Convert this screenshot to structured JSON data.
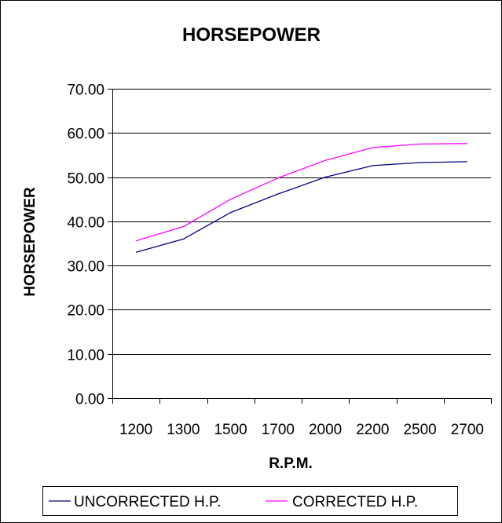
{
  "chart_data": {
    "type": "line",
    "title": "HORSEPOWER",
    "xlabel": "R.P.M.",
    "ylabel": "HORSEPOWER",
    "categories": [
      "1200",
      "1300",
      "1500",
      "1700",
      "2000",
      "2200",
      "2500",
      "2700"
    ],
    "y_ticks": [
      "0.00",
      "10.00",
      "20.00",
      "30.00",
      "40.00",
      "50.00",
      "60.00",
      "70.00"
    ],
    "ylim": [
      0,
      70
    ],
    "grid": "horizontal",
    "legend_position": "bottom",
    "series": [
      {
        "name": "UNCORRECTED H.P.",
        "color": "#000080",
        "values": [
          33.0,
          36.0,
          42.0,
          46.2,
          50.0,
          52.6,
          53.3,
          53.5
        ]
      },
      {
        "name": "CORRECTED H.P.",
        "color": "#ff00ff",
        "values": [
          35.6,
          38.8,
          45.0,
          49.8,
          53.8,
          56.7,
          57.5,
          57.6
        ]
      }
    ]
  }
}
